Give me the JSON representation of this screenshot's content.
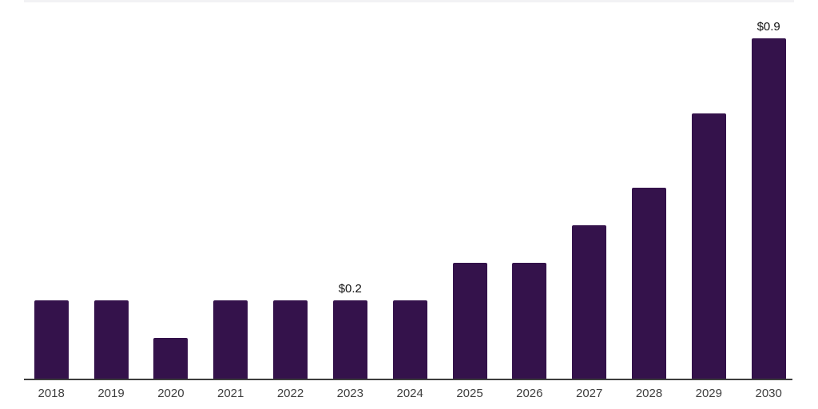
{
  "chart_data": {
    "type": "bar",
    "title": "",
    "xlabel": "",
    "ylabel": "",
    "categories": [
      "2018",
      "2019",
      "2020",
      "2021",
      "2022",
      "2023",
      "2024",
      "2025",
      "2026",
      "2027",
      "2028",
      "2029",
      "2030"
    ],
    "values": [
      0.2,
      0.2,
      0.1,
      0.2,
      0.2,
      0.2,
      0.2,
      0.3,
      0.3,
      0.4,
      0.5,
      0.7,
      0.9
    ],
    "data_labels": {
      "2023": "$0.2",
      "2030": "$0.9"
    },
    "value_prefix": "$",
    "ylim": [
      0,
      1.0
    ],
    "grid": false,
    "legend": "none",
    "orientation": "vertical"
  },
  "colors": {
    "background": "#ffffff",
    "bar": "#34124B",
    "axis_line": "#3d3d3d",
    "top_border": "#f2f2f4",
    "data_label_text": "#111111",
    "tick_label_text": "#3f3f3f"
  }
}
